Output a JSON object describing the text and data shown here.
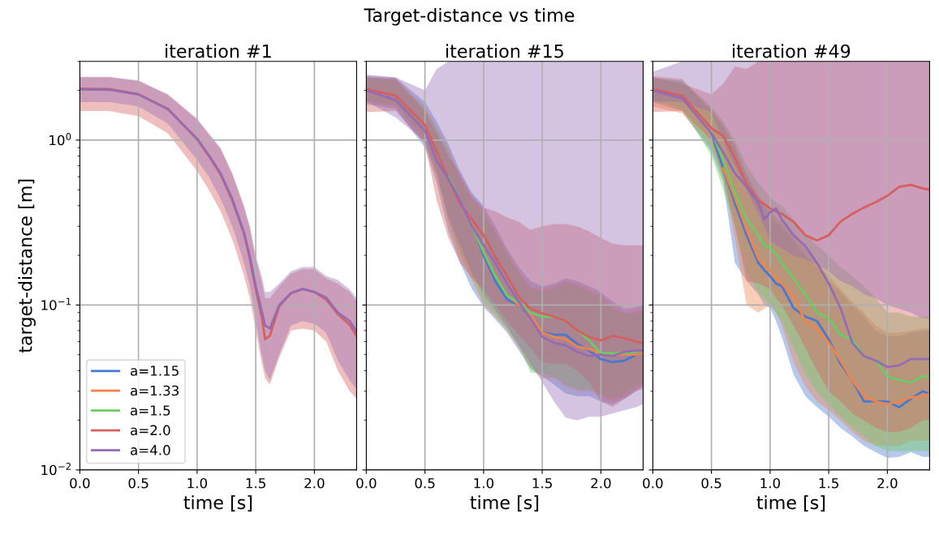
{
  "chart_data": [
    {
      "type": "line",
      "title": "iteration #1",
      "annotations": [
        "Target-distance vs time"
      ],
      "xlabel": "time [s]",
      "ylabel": "target-distance [m]",
      "log": "y",
      "grid": true,
      "legend": "bottom left",
      "line_style": "solid",
      "marker": "none",
      "xlim": [
        0,
        2.36
      ],
      "ylim": [
        0.01,
        3
      ],
      "xticks": [
        {
          "value": 0,
          "label": "0.0"
        },
        {
          "value": 0.5,
          "label": "0.5"
        },
        {
          "value": 1,
          "label": "1.0"
        },
        {
          "value": 1.5,
          "label": "1.5"
        },
        {
          "value": 2,
          "label": "2.0"
        }
      ],
      "yticks": [
        {
          "value": 0.01,
          "label": "10$^{−2}$"
        },
        {
          "value": 0.1,
          "label": "10$^{−1}$"
        },
        {
          "value": 1,
          "label": "10$^{0}$"
        }
      ],
      "x": [
        0,
        0.25,
        0.5,
        0.75,
        1.0,
        1.1,
        1.2,
        1.3,
        1.4,
        1.45,
        1.5,
        1.55,
        1.58,
        1.62,
        1.7,
        1.8,
        1.9,
        2.0,
        2.1,
        2.2,
        2.3,
        2.36
      ],
      "series": [
        {
          "name": "a=1.15",
          "color": "#4878d0",
          "values": [
            null,
            null,
            null,
            null,
            null,
            null,
            null,
            null,
            null,
            null,
            null,
            null,
            null,
            null,
            null,
            null,
            null,
            null,
            null,
            null,
            null,
            null
          ]
        },
        {
          "name": "a=1.33",
          "color": "#ee854a",
          "values": [
            null,
            null,
            null,
            null,
            null,
            null,
            null,
            null,
            null,
            null,
            null,
            null,
            null,
            null,
            null,
            null,
            null,
            null,
            null,
            null,
            null,
            null
          ]
        },
        {
          "name": "a=1.5",
          "color": "#6acc64",
          "values": [
            null,
            null,
            null,
            null,
            null,
            null,
            null,
            null,
            null,
            null,
            null,
            null,
            null,
            null,
            null,
            null,
            null,
            null,
            null,
            null,
            null,
            null
          ]
        },
        {
          "name": "a=2.0",
          "color": "#d65f5f",
          "values": [
            2.05,
            2.04,
            1.9,
            1.55,
            1.01,
            0.8,
            0.62,
            0.43,
            0.27,
            0.19,
            0.125,
            0.085,
            0.062,
            0.065,
            0.098,
            0.118,
            0.125,
            0.12,
            0.108,
            0.088,
            0.076,
            0.065
          ],
          "lower": [
            1.5,
            1.5,
            1.4,
            1.1,
            0.65,
            0.5,
            0.37,
            0.25,
            0.15,
            0.11,
            0.07,
            0.045,
            0.036,
            0.033,
            0.048,
            0.07,
            0.072,
            0.07,
            0.06,
            0.04,
            0.03,
            0.027
          ],
          "upper": [
            2.4,
            2.4,
            2.28,
            1.88,
            1.33,
            1.08,
            0.88,
            0.62,
            0.39,
            0.29,
            0.19,
            0.14,
            0.11,
            0.11,
            0.13,
            0.155,
            0.165,
            0.165,
            0.145,
            0.135,
            0.12,
            0.105
          ]
        },
        {
          "name": "a=4.0",
          "color": "#956cb4",
          "values": [
            2.03,
            2.02,
            1.89,
            1.54,
            1.02,
            0.81,
            0.63,
            0.44,
            0.275,
            0.196,
            0.13,
            0.093,
            0.075,
            0.072,
            0.1,
            0.118,
            0.125,
            0.12,
            0.111,
            0.09,
            0.08,
            0.069
          ],
          "lower": [
            1.7,
            1.7,
            1.6,
            1.26,
            0.76,
            0.6,
            0.44,
            0.3,
            0.18,
            0.13,
            0.08,
            0.05,
            0.04,
            0.035,
            0.05,
            0.075,
            0.08,
            0.077,
            0.068,
            0.046,
            0.035,
            0.031
          ],
          "upper": [
            2.42,
            2.42,
            2.3,
            1.9,
            1.35,
            1.1,
            0.9,
            0.63,
            0.4,
            0.3,
            0.2,
            0.15,
            0.12,
            0.12,
            0.135,
            0.16,
            0.17,
            0.17,
            0.15,
            0.142,
            0.125,
            0.11
          ]
        }
      ]
    },
    {
      "type": "line",
      "title": "iteration #15",
      "xlabel": "time [s]",
      "log": "y",
      "grid": true,
      "tick_labels": "x",
      "line_style": "solid",
      "marker": "none",
      "xlim": [
        0,
        2.36
      ],
      "ylim": [
        0.01,
        3
      ],
      "xticks": [
        {
          "value": 0,
          "label": "0.0"
        },
        {
          "value": 0.5,
          "label": "0.5"
        },
        {
          "value": 1,
          "label": "1.0"
        },
        {
          "value": 1.5,
          "label": "1.5"
        },
        {
          "value": 2,
          "label": "2.0"
        }
      ],
      "yticks": [
        {
          "value": 0.01,
          "label": null
        },
        {
          "value": 0.1,
          "label": null
        },
        {
          "value": 1,
          "label": null
        }
      ],
      "x": [
        0,
        0.25,
        0.5,
        0.6,
        0.7,
        0.8,
        0.9,
        1.0,
        1.1,
        1.2,
        1.3,
        1.4,
        1.5,
        1.6,
        1.7,
        1.8,
        1.9,
        2.0,
        2.1,
        2.2,
        2.3,
        2.36
      ],
      "series": [
        {
          "color": "#4878d0",
          "values": [
            null,
            null,
            null,
            null,
            null,
            null,
            0.31,
            0.2,
            0.14,
            0.108,
            0.1,
            0.085,
            0.068,
            0.066,
            0.066,
            0.058,
            0.053,
            0.047,
            0.045,
            0.046,
            0.05,
            0.051
          ],
          "lower": [
            1.65,
            1.55,
            0.9,
            0.55,
            0.28,
            0.18,
            0.125,
            0.097,
            0.082,
            0.068,
            0.053,
            0.041,
            0.037,
            0.033,
            0.029,
            0.028,
            0.028,
            0.026,
            0.025,
            0.027,
            0.03,
            0.032
          ],
          "upper": [
            2.45,
            2.4,
            1.7,
            1.3,
            0.95,
            0.65,
            0.48,
            0.4,
            0.3,
            0.22,
            0.17,
            0.14,
            0.13,
            0.135,
            0.145,
            0.14,
            0.13,
            0.12,
            0.105,
            0.095,
            0.097,
            0.1
          ]
        },
        {
          "color": "#ee854a",
          "values": [
            null,
            null,
            null,
            null,
            0.58,
            0.42,
            0.31,
            0.21,
            0.15,
            0.115,
            0.1,
            0.087,
            0.068,
            0.064,
            0.062,
            0.056,
            0.054,
            0.051,
            0.05,
            0.05,
            0.05,
            0.051
          ],
          "lower": [
            1.7,
            1.6,
            0.95,
            0.6,
            0.32,
            0.2,
            0.14,
            0.1,
            0.085,
            0.07,
            0.055,
            0.042,
            0.036,
            0.036,
            0.032,
            0.03,
            0.03,
            0.028,
            0.026,
            0.028,
            0.031,
            0.033
          ],
          "upper": [
            2.4,
            2.35,
            1.6,
            1.2,
            0.9,
            0.6,
            0.45,
            0.38,
            0.28,
            0.21,
            0.16,
            0.13,
            0.125,
            0.13,
            0.14,
            0.135,
            0.125,
            0.115,
            0.1,
            0.09,
            0.093,
            0.095
          ]
        },
        {
          "color": "#6acc64",
          "values": [
            null,
            null,
            null,
            null,
            0.6,
            0.43,
            0.3,
            0.21,
            0.15,
            0.114,
            0.104,
            0.09,
            0.085,
            0.085,
            0.08,
            0.07,
            0.061,
            0.051,
            0.051,
            0.051,
            0.052,
            0.053
          ],
          "lower": [
            1.75,
            1.65,
            1.0,
            0.65,
            0.34,
            0.21,
            0.15,
            0.105,
            0.088,
            0.072,
            0.057,
            0.039,
            0.038,
            0.037,
            0.033,
            0.031,
            0.031,
            0.029,
            0.027,
            0.029,
            0.032,
            0.034
          ],
          "upper": [
            2.35,
            2.3,
            1.55,
            1.15,
            0.85,
            0.58,
            0.43,
            0.36,
            0.27,
            0.2,
            0.155,
            0.125,
            0.12,
            0.125,
            0.135,
            0.13,
            0.12,
            0.11,
            0.095,
            0.088,
            0.09,
            0.092
          ]
        },
        {
          "color": "#d65f5f",
          "values": [
            2.04,
            1.86,
            1.23,
            0.85,
            0.58,
            0.41,
            0.33,
            0.265,
            0.196,
            0.15,
            0.112,
            0.095,
            0.089,
            0.085,
            0.08,
            0.07,
            0.064,
            0.061,
            0.065,
            0.063,
            0.06,
            0.059
          ],
          "lower": [
            1.48,
            1.5,
            0.95,
            0.43,
            0.255,
            0.18,
            0.145,
            0.125,
            0.1,
            0.08,
            0.066,
            0.055,
            0.045,
            0.044,
            0.044,
            0.04,
            0.034,
            0.026,
            0.024,
            0.027,
            0.03,
            0.031
          ],
          "upper": [
            2.4,
            2.35,
            1.5,
            1.1,
            0.8,
            0.63,
            0.46,
            0.39,
            0.37,
            0.34,
            0.32,
            0.285,
            0.3,
            0.31,
            0.31,
            0.3,
            0.28,
            0.255,
            0.236,
            0.23,
            0.23,
            0.23
          ]
        },
        {
          "color": "#956cb4",
          "values": [
            2.0,
            1.75,
            1.14,
            0.75,
            0.58,
            0.43,
            0.3,
            0.23,
            0.18,
            0.135,
            0.104,
            0.083,
            0.064,
            0.059,
            0.057,
            0.052,
            0.049,
            0.05,
            0.049,
            0.052,
            0.053,
            0.053
          ],
          "lower": [
            1.72,
            1.37,
            0.98,
            0.63,
            0.34,
            0.23,
            0.157,
            0.116,
            0.093,
            0.074,
            0.057,
            0.044,
            0.034,
            0.026,
            0.0207,
            0.02,
            0.021,
            0.021,
            0.022,
            0.023,
            0.024,
            0.025
          ],
          "upper": [
            2.5,
            2.4,
            2.0,
            2.7,
            3,
            3,
            3,
            3,
            3,
            3,
            3,
            3,
            3,
            3,
            3,
            3,
            3,
            3,
            3,
            3,
            3,
            3
          ]
        }
      ]
    },
    {
      "type": "line",
      "title": "iteration #49",
      "xlabel": "time [s]",
      "log": "y",
      "grid": true,
      "tick_labels": "x",
      "line_style": "solid",
      "marker": "none",
      "xlim": [
        0,
        2.36
      ],
      "ylim": [
        0.01,
        3
      ],
      "xticks": [
        {
          "value": 0,
          "label": "0.0"
        },
        {
          "value": 0.5,
          "label": "0.5"
        },
        {
          "value": 1,
          "label": "1.0"
        },
        {
          "value": 1.5,
          "label": "1.5"
        },
        {
          "value": 2,
          "label": "2.0"
        }
      ],
      "yticks": [
        {
          "value": 0.01,
          "label": null
        },
        {
          "value": 0.1,
          "label": null
        },
        {
          "value": 1,
          "label": null
        }
      ],
      "x": [
        0,
        0.25,
        0.5,
        0.6,
        0.7,
        0.8,
        0.9,
        0.95,
        1.0,
        1.05,
        1.1,
        1.2,
        1.3,
        1.4,
        1.5,
        1.6,
        1.7,
        1.8,
        1.9,
        2.0,
        2.1,
        2.2,
        2.3,
        2.36
      ],
      "series": [
        {
          "color": "#4878d0",
          "values": [
            null,
            null,
            1.1,
            0.675,
            0.415,
            0.265,
            0.18,
            0.163,
            0.15,
            0.135,
            0.13,
            0.096,
            0.085,
            0.08,
            0.062,
            0.044,
            0.035,
            0.026,
            0.026,
            0.026,
            0.024,
            0.027,
            0.03,
            0.029
          ],
          "lower": [
            1.7,
            1.5,
            0.85,
            0.56,
            0.18,
            0.14,
            0.116,
            0.1,
            0.096,
            0.08,
            0.064,
            0.038,
            0.028,
            0.024,
            0.021,
            0.018,
            0.016,
            0.014,
            0.0128,
            0.0118,
            0.012,
            0.0128,
            0.012,
            0.012
          ],
          "upper": [
            2.4,
            2.3,
            1.5,
            1.2,
            0.9,
            0.6,
            0.45,
            0.4,
            0.35,
            0.32,
            0.3,
            0.25,
            0.2,
            0.17,
            0.14,
            0.12,
            0.1,
            0.085,
            0.07,
            0.065,
            0.065,
            0.068,
            0.07,
            0.07
          ]
        },
        {
          "color": "#ee854a",
          "values": [
            null,
            null,
            null,
            0.675,
            0.447,
            0.285,
            0.19,
            0.175,
            0.163,
            0.145,
            0.135,
            0.112,
            0.08,
            0.072,
            0.059,
            0.046,
            0.035,
            0.028,
            0.026,
            0.025,
            0.026,
            0.0275,
            0.028,
            0.029
          ],
          "lower": [
            1.6,
            1.45,
            0.9,
            0.6,
            0.25,
            0.1,
            0.09,
            0.095,
            0.1,
            0.09,
            0.075,
            0.045,
            0.032,
            0.026,
            0.023,
            0.02,
            0.017,
            0.015,
            0.014,
            0.014,
            0.014,
            0.015,
            0.015,
            0.015
          ],
          "upper": [
            2.45,
            2.35,
            1.55,
            1.25,
            0.95,
            0.63,
            0.47,
            0.42,
            0.37,
            0.34,
            0.32,
            0.27,
            0.22,
            0.18,
            0.15,
            0.125,
            0.105,
            0.09,
            0.075,
            0.068,
            0.068,
            0.07,
            0.072,
            0.072
          ]
        },
        {
          "color": "#6acc64",
          "values": [
            null,
            null,
            1.12,
            0.755,
            0.48,
            0.33,
            0.265,
            0.23,
            0.224,
            0.204,
            0.18,
            0.145,
            0.116,
            0.09,
            0.083,
            0.066,
            0.062,
            0.049,
            0.046,
            0.037,
            0.035,
            0.034,
            0.037,
            0.037
          ],
          "lower": [
            1.75,
            1.55,
            0.8,
            0.5,
            0.3,
            0.16,
            0.12,
            0.11,
            0.1,
            0.09,
            0.08,
            0.055,
            0.038,
            0.03,
            0.025,
            0.021,
            0.018,
            0.016,
            0.014,
            0.013,
            0.013,
            0.013,
            0.013,
            0.013
          ],
          "upper": [
            2.35,
            2.25,
            1.6,
            1.3,
            1.0,
            0.7,
            0.55,
            0.5,
            0.45,
            0.42,
            0.4,
            0.33,
            0.27,
            0.23,
            0.2,
            0.17,
            0.15,
            0.13,
            0.11,
            0.09,
            0.09,
            0.085,
            0.085,
            0.085
          ]
        },
        {
          "color": "#d65f5f",
          "values": [
            2.04,
            1.86,
            1.18,
            1.06,
            0.78,
            0.54,
            0.43,
            0.41,
            0.385,
            0.37,
            0.357,
            0.32,
            0.265,
            0.246,
            0.265,
            0.32,
            0.357,
            0.39,
            0.42,
            0.46,
            0.52,
            0.535,
            0.51,
            0.5
          ],
          "lower": [
            1.48,
            1.5,
            1.0,
            0.6,
            0.3,
            0.14,
            0.135,
            0.13,
            0.125,
            0.11,
            0.1,
            0.075,
            0.055,
            0.04,
            0.03,
            0.026,
            0.022,
            0.02,
            0.018,
            0.017,
            0.017,
            0.018,
            0.02,
            0.02
          ],
          "upper": [
            2.4,
            2.2,
            1.9,
            2.2,
            2.8,
            2.7,
            3,
            3,
            3,
            3,
            3,
            3,
            3,
            3,
            3,
            3,
            3,
            3,
            3,
            3,
            3,
            3,
            3,
            3
          ]
        },
        {
          "color": "#956cb4",
          "values": [
            2.0,
            1.79,
            1.1,
            0.845,
            0.63,
            0.52,
            0.415,
            0.33,
            0.365,
            0.385,
            0.33,
            0.265,
            0.228,
            0.18,
            0.135,
            0.096,
            0.059,
            0.049,
            0.046,
            0.042,
            0.043,
            0.047,
            0.047,
            0.047
          ],
          "lower": [
            1.72,
            1.7,
            1.48,
            0.98,
            0.7,
            0.5,
            0.36,
            0.3,
            0.245,
            0.23,
            0.22,
            0.2,
            0.19,
            0.175,
            0.16,
            0.14,
            0.13,
            0.116,
            0.11,
            0.1,
            0.095,
            0.09,
            0.083,
            0.083
          ],
          "upper": [
            2.6,
            3,
            3,
            3,
            3,
            3,
            3,
            3,
            3,
            3,
            3,
            3,
            3,
            3,
            3,
            3,
            3,
            3,
            3,
            3,
            3,
            3,
            3,
            3
          ]
        }
      ]
    }
  ]
}
